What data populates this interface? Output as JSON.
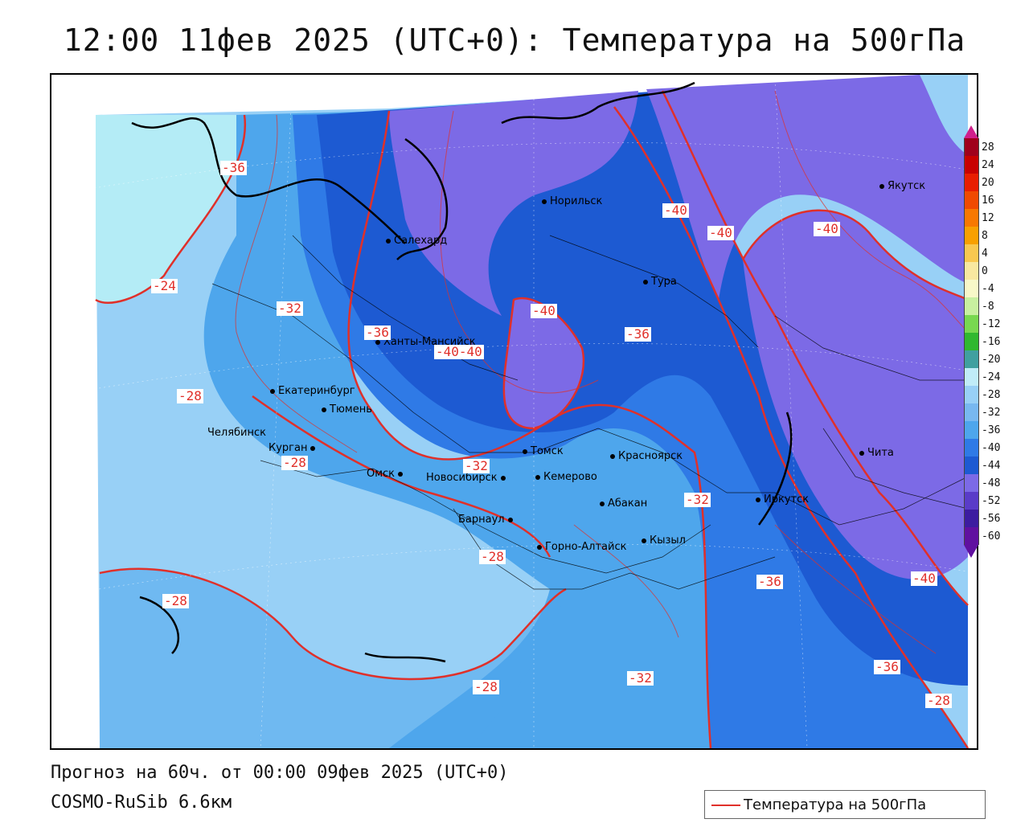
{
  "title": "12:00 11фев 2025 (UTC+0): Температура на 500гПа",
  "footer": {
    "forecast": "Прогноз на 60ч. от 00:00 09фев 2025 (UTC+0)",
    "model": "COSMO-RuSib 6.6км"
  },
  "legend": {
    "label": "Температура на 500гПа",
    "color": "#e0302a"
  },
  "colors": {
    "t_m24": "#b4ecf6",
    "t_m28": "#98d0f6",
    "t_m32": "#4ea6ec",
    "t_m36": "#2f7ae6",
    "t_m40": "#1d5ad2",
    "t_m44": "#7c6ae6",
    "contour": "#e0302a"
  },
  "colorbar": {
    "ticks": [
      "28",
      "24",
      "20",
      "16",
      "12",
      "8",
      "4",
      "0",
      "-4",
      "-8",
      "-12",
      "-16",
      "-20",
      "-24",
      "-28",
      "-32",
      "-36",
      "-40",
      "-44",
      "-48",
      "-52",
      "-56",
      "-60"
    ],
    "colors": [
      "#a0001c",
      "#c80000",
      "#e81e00",
      "#f04a00",
      "#f87800",
      "#f8a000",
      "#f8c850",
      "#f8e8a0",
      "#f8f8c8",
      "#c8f0a0",
      "#78d850",
      "#30b830",
      "#40a0a0",
      "#c0ecf8",
      "#98d0f6",
      "#78b8f0",
      "#4ea6ec",
      "#2f7ae6",
      "#1d5ad2",
      "#7c6ae6",
      "#5a3cc8",
      "#3c1ca0",
      "#6010a0"
    ]
  },
  "cities": [
    {
      "name": "Якутск"
    },
    {
      "name": "Норильск"
    },
    {
      "name": "Салехард"
    },
    {
      "name": "Тура"
    },
    {
      "name": "Ханты-Мансийск"
    },
    {
      "name": "Екатеринбург"
    },
    {
      "name": "Тюмень"
    },
    {
      "name": "Челябинск"
    },
    {
      "name": "Курган"
    },
    {
      "name": "Омск"
    },
    {
      "name": "Новосибирск"
    },
    {
      "name": "Томск"
    },
    {
      "name": "Красноярск"
    },
    {
      "name": "Кемерово"
    },
    {
      "name": "Абакан"
    },
    {
      "name": "Барнаул"
    },
    {
      "name": "Горно-Алтайск"
    },
    {
      "name": "Кызыл"
    },
    {
      "name": "Иркутск"
    },
    {
      "name": "Чита"
    }
  ],
  "contour_labels": [
    "-36",
    "-24",
    "-32",
    "-36",
    "-40-40",
    "-28",
    "-28",
    "-32",
    "-28",
    "-28",
    "-28",
    "-40",
    "-40",
    "-40",
    "-36",
    "-40",
    "-32",
    "-36",
    "-40",
    "-36",
    "-32",
    "-28"
  ]
}
